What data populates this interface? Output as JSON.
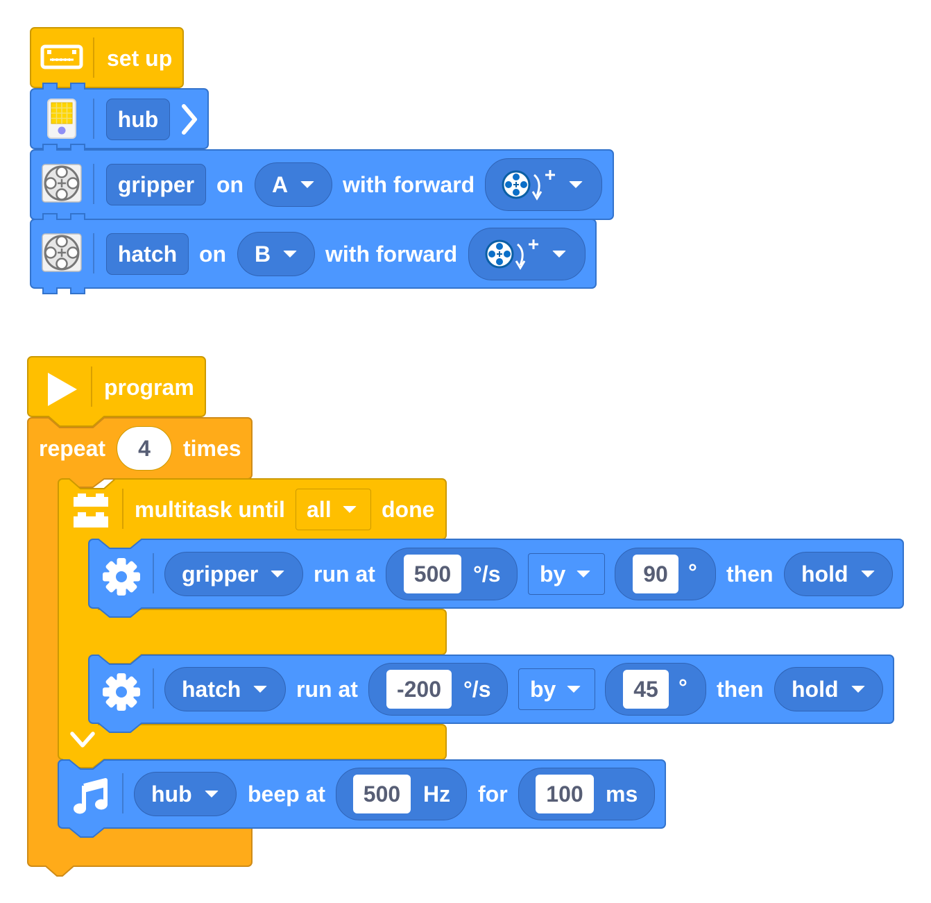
{
  "colors": {
    "event_yellow": "#ffbf00",
    "control_orange": "#ffab19",
    "motor_blue": "#4c97ff",
    "field_dark_blue": "#3d7ddb",
    "text_white": "#ffffff",
    "input_text": "#575e75"
  },
  "setup_stack": {
    "hat": {
      "icon": "hub-setup-icon",
      "label": "set up"
    },
    "hub_block": {
      "icon": "hub-brick-icon",
      "var": "hub",
      "expand_icon": "chevron-right-icon"
    },
    "motor_blocks": [
      {
        "icon": "motor-icon",
        "var": "gripper",
        "on": "on",
        "port": "A",
        "with_forward": "with forward",
        "direction_icon": "motor-clockwise-icon"
      },
      {
        "icon": "motor-icon",
        "var": "hatch",
        "on": "on",
        "port": "B",
        "with_forward": "with forward",
        "direction_icon": "motor-clockwise-icon"
      }
    ]
  },
  "program_stack": {
    "hat": {
      "icon": "play-icon",
      "label": "program"
    },
    "repeat": {
      "label": "repeat",
      "count": "4",
      "suffix": "times"
    },
    "multitask": {
      "icon": "multitask-icon",
      "label": "multitask until",
      "mode": "all",
      "suffix": "done",
      "collapse_icon": "chevron-down-icon"
    },
    "run_blocks": [
      {
        "icon": "gear-icon",
        "motor": "gripper",
        "run_at": "run at",
        "speed": "500",
        "speed_unit": "°/s",
        "by": "by",
        "amount": "90",
        "amount_unit": "°",
        "then": "then",
        "stop": "hold"
      },
      {
        "icon": "gear-icon",
        "motor": "hatch",
        "run_at": "run at",
        "speed": "-200",
        "speed_unit": "°/s",
        "by": "by",
        "amount": "45",
        "amount_unit": "°",
        "then": "then",
        "stop": "hold"
      }
    ],
    "beep": {
      "icon": "music-note-icon",
      "device": "hub",
      "beep_at": "beep at",
      "freq": "500",
      "freq_unit": "Hz",
      "for": "for",
      "duration": "100",
      "duration_unit": "ms"
    }
  }
}
